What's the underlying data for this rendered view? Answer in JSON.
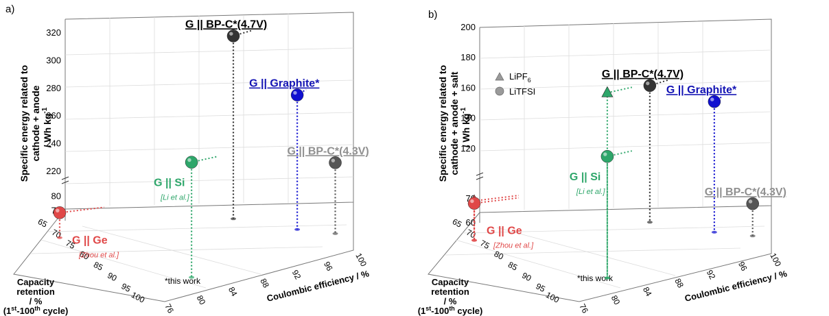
{
  "chart_data": [
    {
      "panel_label": "a)",
      "type": "scatter",
      "ylabel": "Specific energy related to cathode + anode / Wh kg-1",
      "ylabel_lines": [
        "Specific energy related to",
        "cathode + anode",
        "/ Wh kg"
      ],
      "ylabel_sup": "-1",
      "xlabel": "Coulombic efficiency / %",
      "zlabel_lines": [
        "Capacity",
        "retention",
        "/ %"
      ],
      "zlabel_last": {
        "p1": "(1",
        "s1": "st",
        "p2": "-100",
        "s2": "th",
        "p3": " cycle)"
      },
      "y_ticks_upper": [
        "220",
        "240",
        "260",
        "280",
        "300",
        "320"
      ],
      "y_ticks_lower": [
        "70",
        "80"
      ],
      "y_upper_range": [
        210,
        330
      ],
      "y_lower_range": [
        65,
        85
      ],
      "x_ticks": [
        "76",
        "80",
        "84",
        "88",
        "92",
        "96",
        "100"
      ],
      "x_range": [
        76,
        100
      ],
      "z_ticks": [
        "65",
        "70",
        "75",
        "80",
        "85",
        "90",
        "95",
        "100"
      ],
      "z_range": [
        65,
        100
      ],
      "note": "*this work",
      "points": [
        {
          "label": "G || BP-C*(4.7V)",
          "ref": "",
          "color": "#333333",
          "label_color": "#000000",
          "ce": 90.0,
          "cr": 65,
          "energy": 315,
          "underline": true
        },
        {
          "label": "G || Graphite*",
          "ref": "",
          "color": "#1010d0",
          "label_color": "#1414b4",
          "ce": 95.5,
          "cr": 72,
          "energy": 280,
          "underline": true
        },
        {
          "label": "G || Si",
          "ref": "[Li et al.]",
          "color": "#2ea66a",
          "label_color": "#2ea66a",
          "ce": 88.3,
          "cr": 94,
          "energy": 266,
          "underline": false
        },
        {
          "label": "G || BP-C*(4.3V)",
          "ref": "",
          "color": "#555555",
          "label_color": "#909090",
          "ce": 98.6,
          "cr": 76,
          "energy": 234,
          "underline": true
        },
        {
          "label": "G || Ge",
          "ref": "[Zhou et al.]",
          "color": "#e04848",
          "label_color": "#e04848",
          "ce": 76.5,
          "cr": 73,
          "energy": 79,
          "underline": false
        }
      ]
    },
    {
      "panel_label": "b)",
      "type": "scatter",
      "ylabel": "Specific energy related to cathode + anode + salt / Wh kg-1",
      "ylabel_lines": [
        "Specific energy related to",
        "cathode + anode + salt",
        "/ Wh kg"
      ],
      "ylabel_sup": "-1",
      "xlabel": "Coulombic efficiency / %",
      "zlabel_lines": [
        "Capacity",
        "retention",
        "/ %"
      ],
      "zlabel_last": {
        "p1": "(1",
        "s1": "st",
        "p2": "-100",
        "s2": "th",
        "p3": " cycle)"
      },
      "y_ticks_upper": [
        "120",
        "140",
        "160",
        "180",
        "200"
      ],
      "y_ticks_lower": [
        "60",
        "70"
      ],
      "y_upper_range": [
        105,
        200
      ],
      "y_lower_range": [
        60,
        78
      ],
      "x_ticks": [
        "76",
        "80",
        "84",
        "88",
        "92",
        "96",
        "100"
      ],
      "x_range": [
        76,
        100
      ],
      "z_ticks": [
        "65",
        "70",
        "75",
        "80",
        "85",
        "90",
        "95",
        "100"
      ],
      "z_range": [
        65,
        100
      ],
      "note": "*this work",
      "legend": [
        {
          "label_main": "LiPF",
          "label_sub": "6",
          "marker": "triangle"
        },
        {
          "label_main": "LiTFSI",
          "label_sub": "",
          "marker": "circle"
        }
      ],
      "points": [
        {
          "label": "G || BP-C*(4.7V)",
          "ref": "",
          "color": "#333333",
          "label_color": "#000000",
          "ce": 90.0,
          "cr": 65,
          "energy": 159,
          "underline": true,
          "marker": "circle"
        },
        {
          "label": "G || Graphite*",
          "ref": "",
          "color": "#1010d0",
          "label_color": "#1414b4",
          "ce": 95.5,
          "cr": 72,
          "energy": 155,
          "underline": true,
          "marker": "circle"
        },
        {
          "label": "G || Si (LiPF6)",
          "ref": "",
          "color": "#2ea66a",
          "label_color": "#2ea66a",
          "ce": 88.3,
          "cr": 94,
          "energy": 191,
          "underline": false,
          "marker": "triangle"
        },
        {
          "label": "G || Si",
          "ref": "[Li et al.]",
          "color": "#2ea66a",
          "label_color": "#2ea66a",
          "ce": 88.3,
          "cr": 94,
          "energy": 149,
          "underline": false,
          "marker": "circle"
        },
        {
          "label": "G || BP-C*(4.3V)",
          "ref": "",
          "color": "#555555",
          "label_color": "#909090",
          "ce": 98.6,
          "cr": 76,
          "energy": 72,
          "underline": true,
          "marker": "circle"
        },
        {
          "label": "G || Ge (LiPF6)",
          "ref": "",
          "color": "#e04848",
          "label_color": "#e04848",
          "ce": 76.5,
          "cr": 73,
          "energy": 75,
          "underline": false,
          "marker": "triangle"
        },
        {
          "label": "G || Ge",
          "ref": "[Zhou et al.]",
          "color": "#e04848",
          "label_color": "#e04848",
          "ce": 76.5,
          "cr": 73,
          "energy": 74,
          "underline": false,
          "marker": "circle"
        }
      ]
    }
  ]
}
